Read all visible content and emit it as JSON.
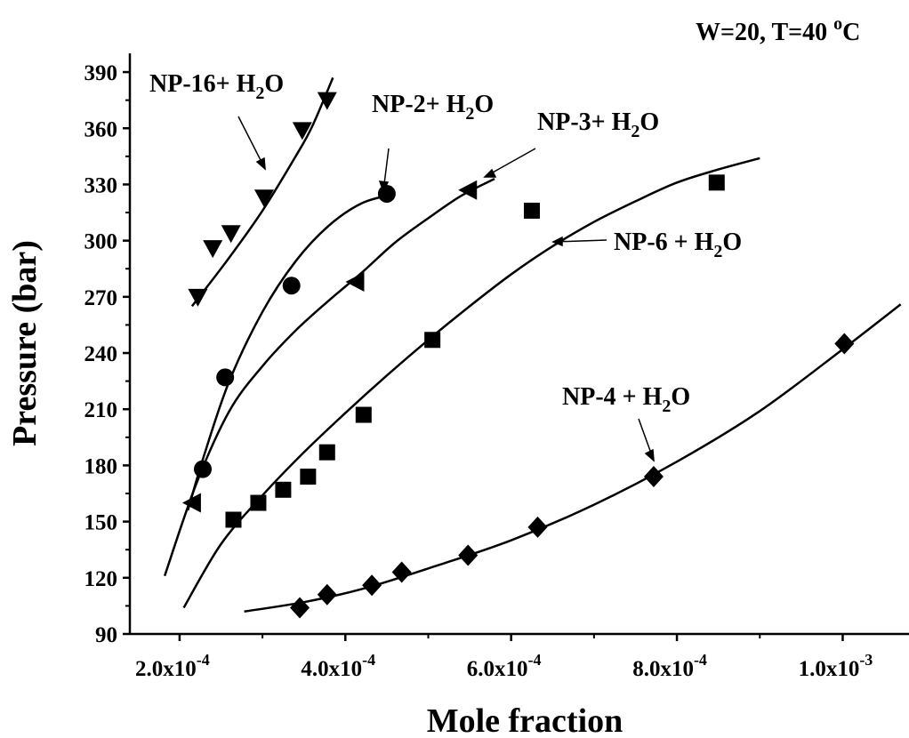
{
  "chart_data": {
    "type": "scatter",
    "title": "W=20, T=40 °C",
    "title_main": "W=20, T=40 ",
    "title_sup": "o",
    "title_tail": "C",
    "xlabel": "Mole fraction",
    "ylabel": "Pressure (bar)",
    "xlim": [
      0.00014,
      0.00108
    ],
    "ylim": [
      90,
      400
    ],
    "x_ticks": [
      {
        "value": 0.0002,
        "mantissa": "2.0x10",
        "exp": "-4"
      },
      {
        "value": 0.0004,
        "mantissa": "4.0x10",
        "exp": "-4"
      },
      {
        "value": 0.0006,
        "mantissa": "6.0x10",
        "exp": "-4"
      },
      {
        "value": 0.0008,
        "mantissa": "8.0x10",
        "exp": "-4"
      },
      {
        "value": 0.001,
        "mantissa": "1.0x10",
        "exp": "-3"
      }
    ],
    "y_ticks": [
      90,
      120,
      150,
      180,
      210,
      240,
      270,
      300,
      330,
      360,
      390
    ],
    "grid": false,
    "series": [
      {
        "name": "NP-16+ H2O",
        "label_main": "NP-16+ H",
        "label_sub": "2",
        "label_tail": "O",
        "marker": "triangle-down",
        "x": [
          0.000222,
          0.00024,
          0.000262,
          0.000302,
          0.000348,
          0.000378
        ],
        "y": [
          270,
          296,
          304,
          323,
          359,
          375
        ],
        "fit_x": [
          0.000215,
          0.00026,
          0.0003,
          0.00034,
          0.00036,
          0.000385
        ],
        "fit_y": [
          265,
          291,
          316,
          345,
          361,
          387
        ]
      },
      {
        "name": "NP-2+ H2O",
        "label_main": "NP-2+ H",
        "label_sub": "2",
        "label_tail": "O",
        "marker": "circle",
        "x": [
          0.000228,
          0.000255,
          0.000335,
          0.00045
        ],
        "y": [
          178,
          227,
          276,
          325
        ],
        "fit_x": [
          0.00021,
          0.00023,
          0.00026,
          0.0003,
          0.00034,
          0.00038,
          0.00042,
          0.00046
        ],
        "fit_y": [
          156,
          186,
          225,
          262,
          289,
          308,
          320,
          325
        ]
      },
      {
        "name": "NP-3+ H2O",
        "label_main": "NP-3+ H",
        "label_sub": "2",
        "label_tail": "O",
        "marker": "triangle-left",
        "x": [
          0.000215,
          0.000412,
          0.000548
        ],
        "y": [
          160,
          278,
          327
        ],
        "fit_x": [
          0.000182,
          0.00022,
          0.00026,
          0.0003,
          0.00034,
          0.00038,
          0.00042,
          0.00046,
          0.0005,
          0.00054,
          0.00058
        ],
        "fit_y": [
          121,
          170,
          209,
          233,
          252,
          268,
          283,
          299,
          312,
          324,
          333
        ]
      },
      {
        "name": "NP-6 + H2O",
        "label_main": "NP-6 + H",
        "label_sub": "2",
        "label_tail": "O",
        "marker": "square",
        "x": [
          0.000265,
          0.000295,
          0.000325,
          0.000355,
          0.000378,
          0.000422,
          0.000505,
          0.000625,
          0.000848
        ],
        "y": [
          151,
          160,
          167,
          174,
          187,
          207,
          247,
          316,
          331
        ],
        "fit_x": [
          0.000205,
          0.00025,
          0.0003,
          0.00035,
          0.0004,
          0.00045,
          0.0005,
          0.00055,
          0.0006,
          0.00065,
          0.0007,
          0.00075,
          0.0008,
          0.00085,
          0.0009
        ],
        "fit_y": [
          104,
          138,
          164,
          187,
          208,
          228,
          247,
          265,
          282,
          297,
          310,
          321,
          331,
          338,
          344
        ]
      },
      {
        "name": "NP-4 + H2O",
        "label_main": "NP-4 + H",
        "label_sub": "2",
        "label_tail": "O",
        "marker": "diamond",
        "x": [
          0.000345,
          0.000378,
          0.000432,
          0.000468,
          0.000548,
          0.000632,
          0.000772,
          0.001002
        ],
        "y": [
          104,
          111,
          116,
          123,
          132,
          147,
          174,
          245
        ],
        "fit_x": [
          0.000278,
          0.00035,
          0.00042,
          0.0005,
          0.0006,
          0.0007,
          0.0008,
          0.0009,
          0.001,
          0.00107
        ],
        "fit_y": [
          102,
          107,
          114,
          125,
          140,
          159,
          182,
          209,
          242,
          266
        ]
      }
    ]
  }
}
